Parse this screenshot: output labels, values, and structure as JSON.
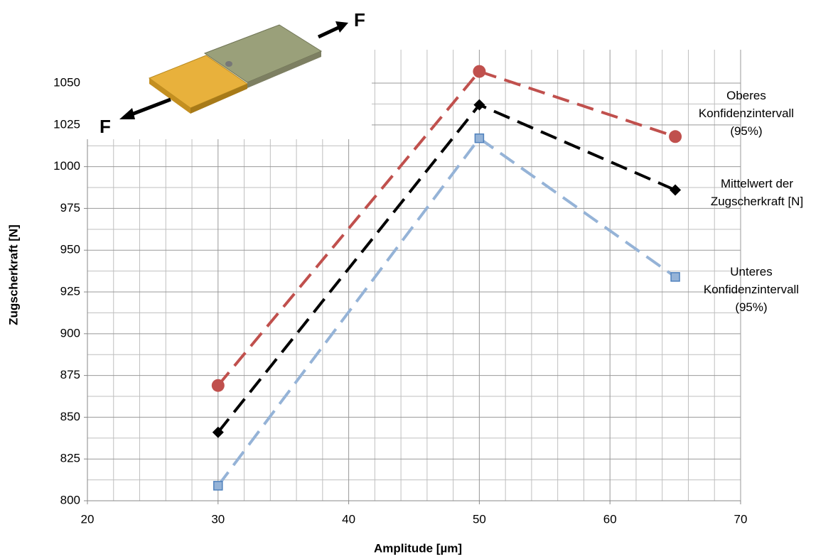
{
  "chart_data": {
    "type": "line",
    "x_label": "Amplitude [µm]",
    "y_label": "Zugscherkraft [N]",
    "x": [
      30,
      50,
      65
    ],
    "series": [
      {
        "name": "Oberes\nKonfidenzintervall\n(95%)",
        "color": "#c0504d",
        "marker": "circle",
        "values": [
          869,
          1057,
          1018
        ]
      },
      {
        "name": "Mittelwert der\nZugscherkraft [N]",
        "color": "#000000",
        "marker": "diamond",
        "values": [
          841,
          1037,
          986
        ]
      },
      {
        "name": "Unteres\nKonfidenzintervall\n(95%)",
        "color": "#95b3d7",
        "marker": "square",
        "values": [
          809,
          1017,
          934
        ]
      }
    ],
    "xlim": [
      20,
      70
    ],
    "xticks": [
      20,
      30,
      40,
      50,
      60,
      70
    ],
    "ylim": [
      800,
      1070
    ],
    "yticks": [
      800,
      825,
      850,
      875,
      900,
      925,
      950,
      975,
      1000,
      1025,
      1050
    ],
    "grid": true,
    "minor_divisions": {
      "x": 5,
      "y": 2
    },
    "annotations": [
      "F",
      "F"
    ]
  }
}
